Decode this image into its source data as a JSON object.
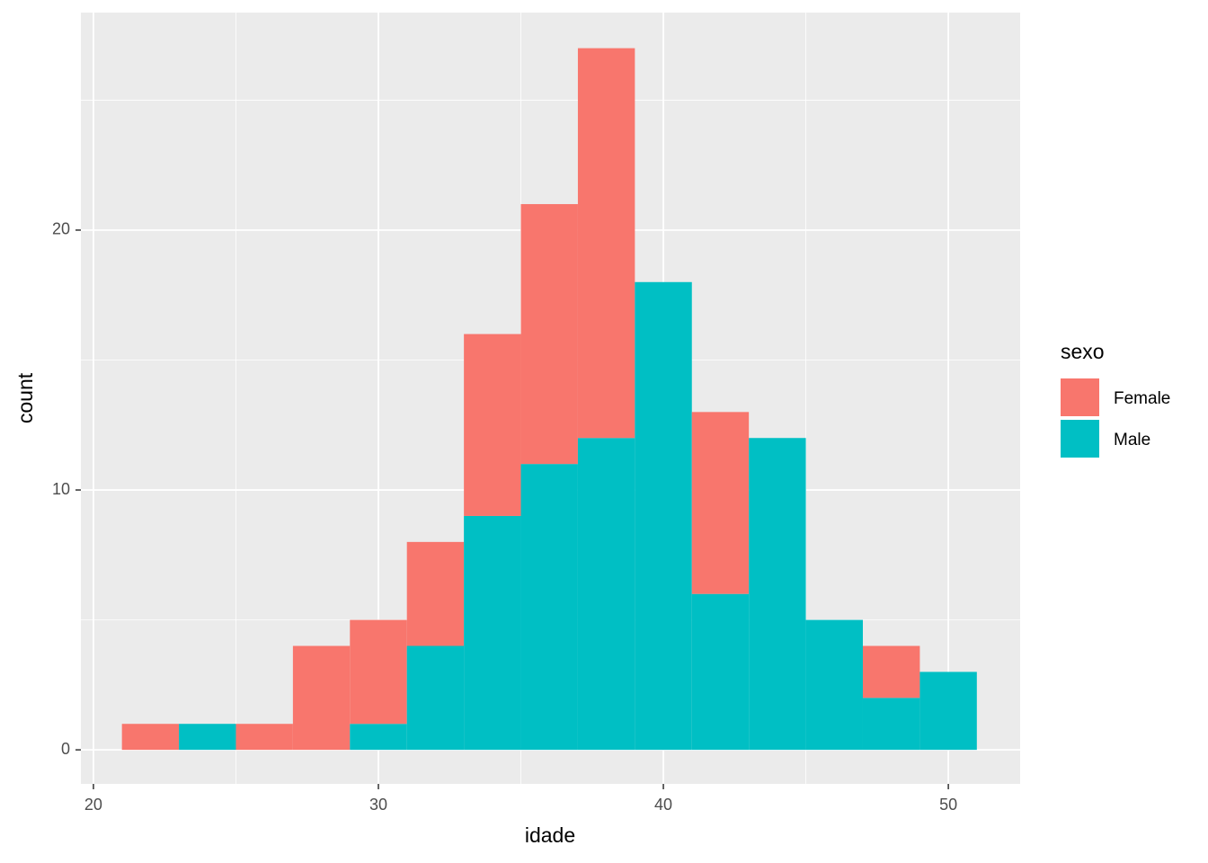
{
  "chart_data": {
    "type": "histogram",
    "stacked": true,
    "x_label": "idade",
    "y_label": "count",
    "legend_title": "sexo",
    "bins": [
      21,
      23,
      25,
      27,
      29,
      31,
      33,
      35,
      37,
      39,
      41,
      43,
      45,
      47,
      49,
      51
    ],
    "series": [
      {
        "name": "Female",
        "color": "#F8766D",
        "values": [
          1,
          0,
          1,
          4,
          4,
          4,
          7,
          10,
          15,
          0,
          7,
          0,
          0,
          2,
          0
        ]
      },
      {
        "name": "Male",
        "color": "#00BFC4",
        "values": [
          0,
          1,
          0,
          0,
          1,
          4,
          9,
          11,
          12,
          18,
          6,
          12,
          5,
          2,
          3
        ]
      }
    ],
    "xlim": [
      19.56,
      52.52
    ],
    "ylim": [
      -1.31,
      28.37
    ],
    "xticks": [
      20,
      30,
      40,
      50
    ],
    "yticks": [
      0,
      10,
      20
    ],
    "xminor": [
      25,
      35,
      45
    ],
    "yminor": [
      5,
      15,
      25
    ],
    "grid": true,
    "legend_position": "right"
  }
}
